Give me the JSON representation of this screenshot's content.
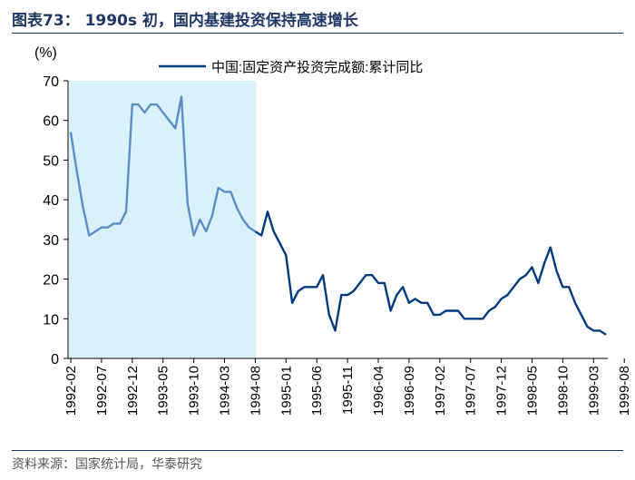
{
  "header": {
    "title": "图表73： 1990s 初，国内基建投资保持高速增长"
  },
  "footer": {
    "source": "资料来源：国家统计局，华泰研究"
  },
  "colors": {
    "series": "#003a80",
    "highlight_line": "#5b8ec5",
    "highlight_fill": "#daf1fa",
    "rule": "#1f3864"
  },
  "chart_data": {
    "type": "line",
    "title": "图表73： 1990s 初，国内基建投资保持高速增长",
    "ylabel": "(%)",
    "xlabel": "",
    "ylim": [
      0,
      70
    ],
    "yticks": [
      0,
      10,
      20,
      30,
      40,
      50,
      60,
      70
    ],
    "xtick_labels": [
      "1992-02",
      "1992-07",
      "1992-12",
      "1993-05",
      "1993-10",
      "1994-03",
      "1994-08",
      "1995-01",
      "1995-06",
      "1995-11",
      "1996-04",
      "1996-09",
      "1997-02",
      "1997-07",
      "1997-12",
      "1998-05",
      "1998-10",
      "1999-03",
      "1999-08"
    ],
    "legend": {
      "label": "中国:固定资产投资完成额:累计同比",
      "position": "top-right"
    },
    "highlight_region": {
      "from": "1992-02",
      "to": "1994-08"
    },
    "series": [
      {
        "name": "中国:固定资产投资完成额:累计同比",
        "start": "1992-02",
        "values": [
          57,
          47,
          38,
          31,
          32,
          33,
          33,
          34,
          34,
          37,
          64,
          64,
          62,
          64,
          64,
          62,
          60,
          58,
          66,
          39,
          31,
          35,
          32,
          36,
          43,
          42,
          42,
          38,
          35,
          33,
          32,
          31,
          37,
          32,
          29,
          26,
          14,
          17,
          18,
          18,
          18,
          21,
          11,
          7,
          16,
          16,
          17,
          19,
          21,
          21,
          19,
          19,
          12,
          16,
          18,
          14,
          15,
          14,
          14,
          11,
          11,
          12,
          12,
          12,
          10,
          10,
          10,
          10,
          12,
          13,
          15,
          16,
          18,
          20,
          21,
          23,
          19,
          24,
          28,
          22,
          18,
          18,
          14,
          11,
          8,
          7,
          7,
          6
        ]
      }
    ]
  }
}
